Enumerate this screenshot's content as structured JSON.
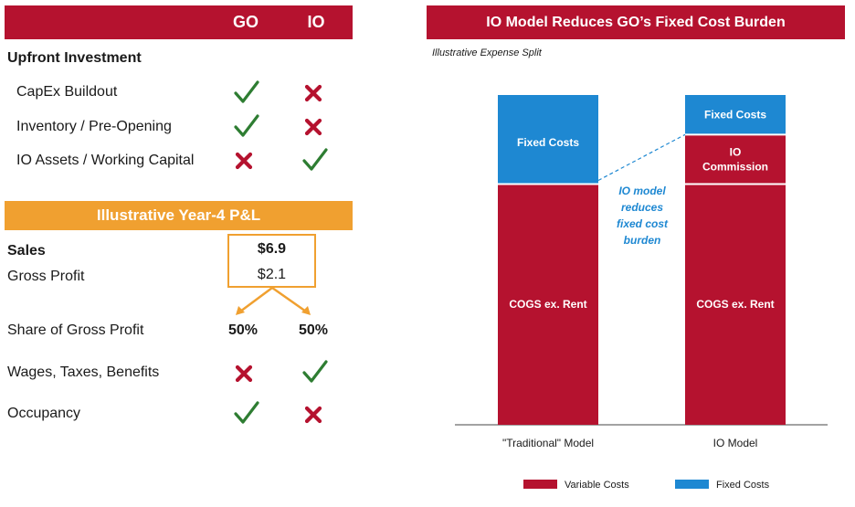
{
  "colors": {
    "red": "#b5122f",
    "blue": "#1e88d2",
    "orange": "#f0a030",
    "green": "#2e7d32",
    "axis": "#444444"
  },
  "left": {
    "columns": [
      "GO",
      "IO"
    ],
    "upfront": {
      "title": "Upfront Investment",
      "rows": [
        {
          "label": "CapEx Buildout",
          "go": "check",
          "io": "cross"
        },
        {
          "label": "Inventory / Pre-Opening",
          "go": "check",
          "io": "cross"
        },
        {
          "label": "IO Assets / Working Capital",
          "go": "cross",
          "io": "check"
        }
      ]
    },
    "pl": {
      "title": "Illustrative Year-4 P&L",
      "sales_label": "Sales",
      "sales_value": "$6.9",
      "gross_profit_label": "Gross Profit",
      "gross_profit_value": "$2.1",
      "share_label": "Share of Gross Profit",
      "share_go": "50%",
      "share_io": "50%",
      "rows": [
        {
          "label": "Wages, Taxes, Benefits",
          "go": "cross",
          "io": "check"
        },
        {
          "label": "Occupancy",
          "go": "check",
          "io": "cross"
        }
      ]
    }
  },
  "chart_data": {
    "type": "bar",
    "stacked": true,
    "title": "IO Model Reduces GO’s Fixed Cost Burden",
    "subtitle": "Illustrative Expense Split",
    "categories": [
      "\"Traditional\" Model",
      "IO Model"
    ],
    "ylim": [
      0,
      100
    ],
    "grid": false,
    "legend_position": "bottom",
    "series": [
      {
        "name": "Variable Costs",
        "color": "#b5122f",
        "values": [
          73,
          73
        ],
        "labels": [
          "COGS ex. Rent",
          "COGS ex. Rent"
        ]
      },
      {
        "name": "Variable Costs",
        "color": "#b5122f",
        "values": [
          0,
          15
        ],
        "labels": [
          "",
          "IO Commission"
        ]
      },
      {
        "name": "Fixed Costs",
        "color": "#1e88d2",
        "values": [
          27,
          12
        ],
        "labels": [
          "Fixed Costs",
          "Fixed Costs"
        ]
      }
    ],
    "legend": [
      {
        "name": "Variable Costs",
        "color": "#b5122f"
      },
      {
        "name": "Fixed Costs",
        "color": "#1e88d2"
      }
    ],
    "annotation": "IO model reduces fixed cost burden"
  }
}
